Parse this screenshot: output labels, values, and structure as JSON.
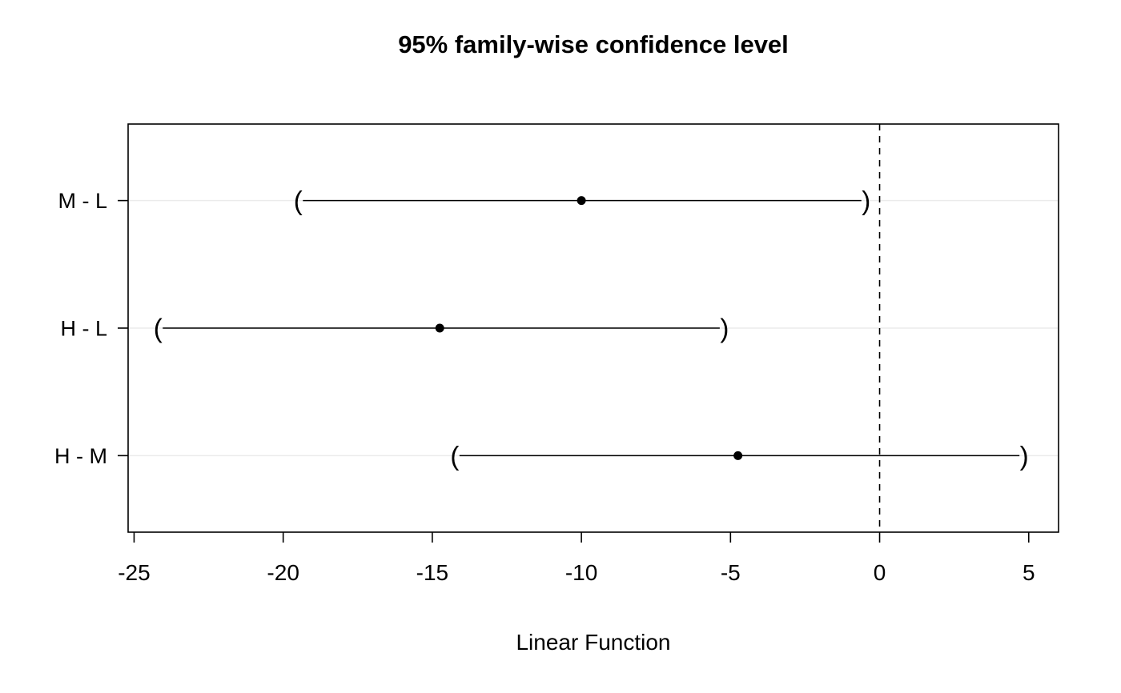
{
  "chart_data": {
    "type": "interval",
    "title": "95% family-wise confidence level",
    "xlabel": "Linear Function",
    "ylabel": "",
    "xlim": [
      -25.2,
      6.0
    ],
    "x_ticks": [
      -25,
      -20,
      -15,
      -10,
      -5,
      0,
      5
    ],
    "reference_line_x": 0,
    "grid": "horizontal-light",
    "legend": null,
    "comparisons": [
      {
        "label": "M - L",
        "lower": -19.5,
        "estimate": -10.0,
        "upper": -0.45
      },
      {
        "label": "H - L",
        "lower": -24.2,
        "estimate": -14.75,
        "upper": -5.2
      },
      {
        "label": "H - M",
        "lower": -14.25,
        "estimate": -4.75,
        "upper": 4.85
      }
    ]
  },
  "colors": {
    "background": "#ffffff",
    "axis": "#000000",
    "text": "#000000",
    "gridline": "#ebebeb",
    "interval": "#000000"
  }
}
